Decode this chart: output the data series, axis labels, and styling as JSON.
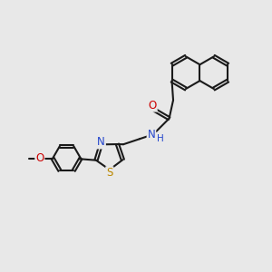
{
  "background_color": "#e8e8e8",
  "bond_color": "#1a1a1a",
  "bond_width": 1.5,
  "dbo": 0.055,
  "figsize": [
    3.0,
    3.0
  ],
  "dpi": 100,
  "xlim": [
    0,
    10
  ],
  "ylim": [
    0,
    10
  ]
}
